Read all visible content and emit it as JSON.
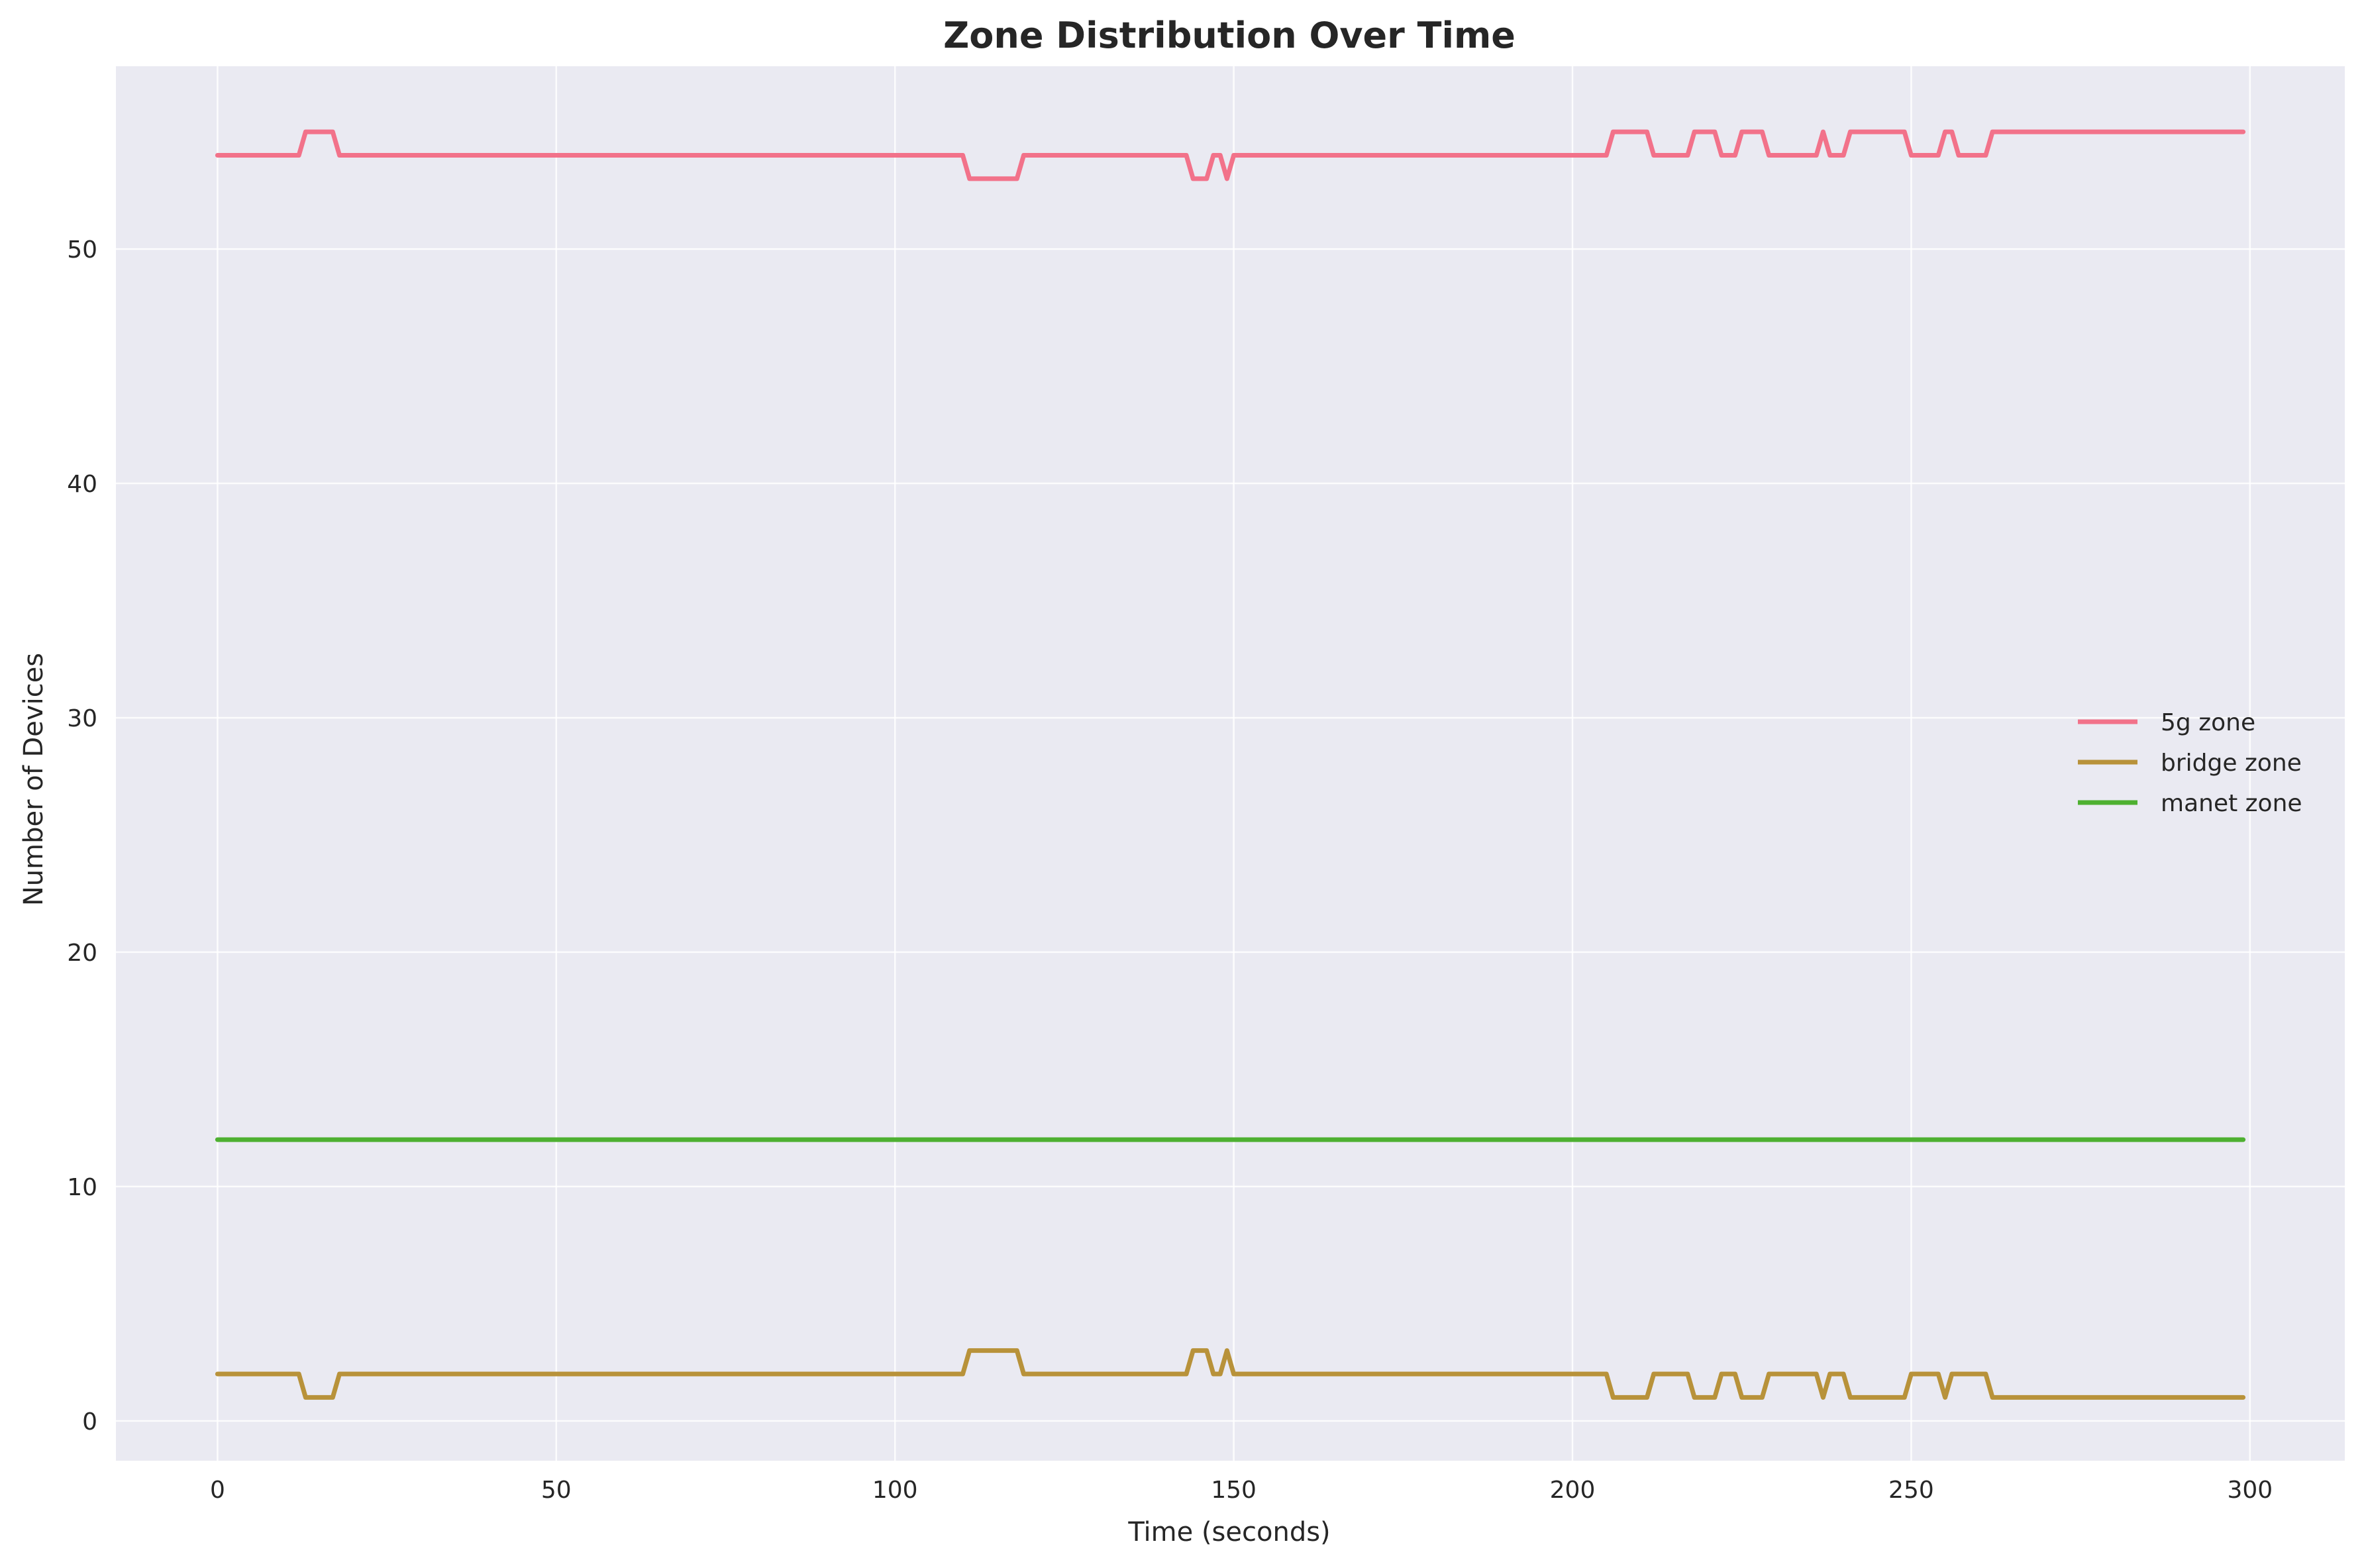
{
  "chart_data": {
    "type": "line",
    "title": "Zone Distribution Over Time",
    "xlabel": "Time (seconds)",
    "ylabel": "Number of Devices",
    "xlim": [
      -15,
      314
    ],
    "ylim": [
      -1.7,
      57.8
    ],
    "xticks": [
      0,
      50,
      100,
      150,
      200,
      250,
      300
    ],
    "yticks": [
      0,
      10,
      20,
      30,
      40,
      50
    ],
    "grid": true,
    "legend_position": "center-right",
    "background_color": "#eaeaf2",
    "series": [
      {
        "name": "5g zone",
        "color": "#f2728a",
        "points": [
          [
            0,
            54
          ],
          [
            12,
            54
          ],
          [
            13,
            55
          ],
          [
            17,
            55
          ],
          [
            18,
            54
          ],
          [
            110,
            54
          ],
          [
            111,
            53
          ],
          [
            118,
            53
          ],
          [
            119,
            54
          ],
          [
            143,
            54
          ],
          [
            144,
            53
          ],
          [
            146,
            53
          ],
          [
            147,
            54
          ],
          [
            148,
            54
          ],
          [
            149,
            53
          ],
          [
            150,
            54
          ],
          [
            205,
            54
          ],
          [
            206,
            55
          ],
          [
            211,
            55
          ],
          [
            212,
            54
          ],
          [
            217,
            54
          ],
          [
            218,
            55
          ],
          [
            221,
            55
          ],
          [
            222,
            54
          ],
          [
            224,
            54
          ],
          [
            225,
            55
          ],
          [
            228,
            55
          ],
          [
            229,
            54
          ],
          [
            236,
            54
          ],
          [
            237,
            55
          ],
          [
            238,
            54
          ],
          [
            240,
            54
          ],
          [
            241,
            55
          ],
          [
            249,
            55
          ],
          [
            250,
            54
          ],
          [
            254,
            54
          ],
          [
            255,
            55
          ],
          [
            256,
            55
          ],
          [
            257,
            54
          ],
          [
            261,
            54
          ],
          [
            262,
            55
          ],
          [
            299,
            55
          ]
        ]
      },
      {
        "name": "bridge zone",
        "color": "#b8923a",
        "points": [
          [
            0,
            2
          ],
          [
            12,
            2
          ],
          [
            13,
            1
          ],
          [
            17,
            1
          ],
          [
            18,
            2
          ],
          [
            110,
            2
          ],
          [
            111,
            3
          ],
          [
            118,
            3
          ],
          [
            119,
            2
          ],
          [
            143,
            2
          ],
          [
            144,
            3
          ],
          [
            146,
            3
          ],
          [
            147,
            2
          ],
          [
            148,
            2
          ],
          [
            149,
            3
          ],
          [
            150,
            2
          ],
          [
            205,
            2
          ],
          [
            206,
            1
          ],
          [
            211,
            1
          ],
          [
            212,
            2
          ],
          [
            217,
            2
          ],
          [
            218,
            1
          ],
          [
            221,
            1
          ],
          [
            222,
            2
          ],
          [
            224,
            2
          ],
          [
            225,
            1
          ],
          [
            228,
            1
          ],
          [
            229,
            2
          ],
          [
            236,
            2
          ],
          [
            237,
            1
          ],
          [
            238,
            2
          ],
          [
            240,
            2
          ],
          [
            241,
            1
          ],
          [
            249,
            1
          ],
          [
            250,
            2
          ],
          [
            254,
            2
          ],
          [
            255,
            1
          ],
          [
            256,
            2
          ],
          [
            257,
            2
          ],
          [
            261,
            2
          ],
          [
            262,
            1
          ],
          [
            299,
            1
          ]
        ]
      },
      {
        "name": "manet zone",
        "color": "#4eb031",
        "points": [
          [
            0,
            12
          ],
          [
            299,
            12
          ]
        ]
      }
    ]
  }
}
